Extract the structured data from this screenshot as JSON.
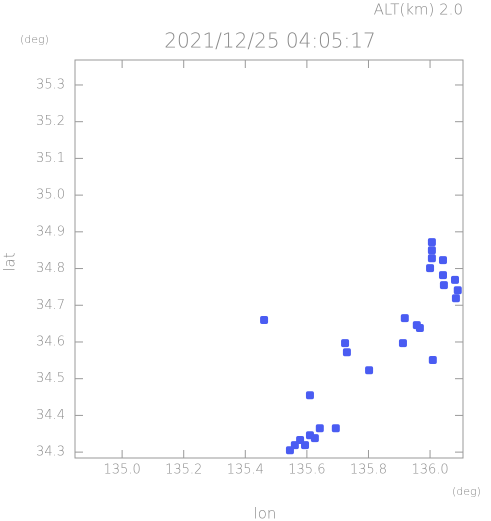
{
  "chart_data": {
    "type": "scatter",
    "title": "2021/12/25 04:05:17",
    "subtitle": "ALT(km) 2.0",
    "x_label": "lon",
    "y_label": "lat",
    "x_unit": "(deg)",
    "y_unit": "(deg)",
    "color": "#4a5cf2",
    "xlim": [
      134.847,
      136.107
    ],
    "ylim": [
      34.284,
      35.368
    ],
    "xticks": [
      {
        "value": 135.0,
        "label": "135.0"
      },
      135.2,
      135.4,
      135.6,
      135.8,
      {
        "value": 136.0,
        "label": "136.0"
      }
    ],
    "yticks": [
      34.3,
      34.4,
      34.5,
      34.6,
      34.7,
      34.8,
      34.9,
      {
        "value": 35.0,
        "label": "35.0"
      },
      35.1,
      35.2,
      35.3
    ],
    "x": [
      136.006,
      136.006,
      136.006,
      136.0,
      136.042,
      136.042,
      136.045,
      136.081,
      136.09,
      136.084,
      135.918,
      135.967,
      135.957,
      135.912,
      136.009,
      135.724,
      135.73,
      135.802,
      135.61,
      135.545,
      135.578,
      135.61,
      135.642,
      135.626,
      135.561,
      135.694,
      135.594,
      135.461
    ],
    "values": [
      34.872,
      34.85,
      34.828,
      34.801,
      34.823,
      34.782,
      34.755,
      34.769,
      34.741,
      34.719,
      34.665,
      34.638,
      34.646,
      34.597,
      34.551,
      34.597,
      34.572,
      34.523,
      34.455,
      34.305,
      34.333,
      34.346,
      34.365,
      34.338,
      34.319,
      34.365,
      34.319,
      34.66
    ]
  }
}
